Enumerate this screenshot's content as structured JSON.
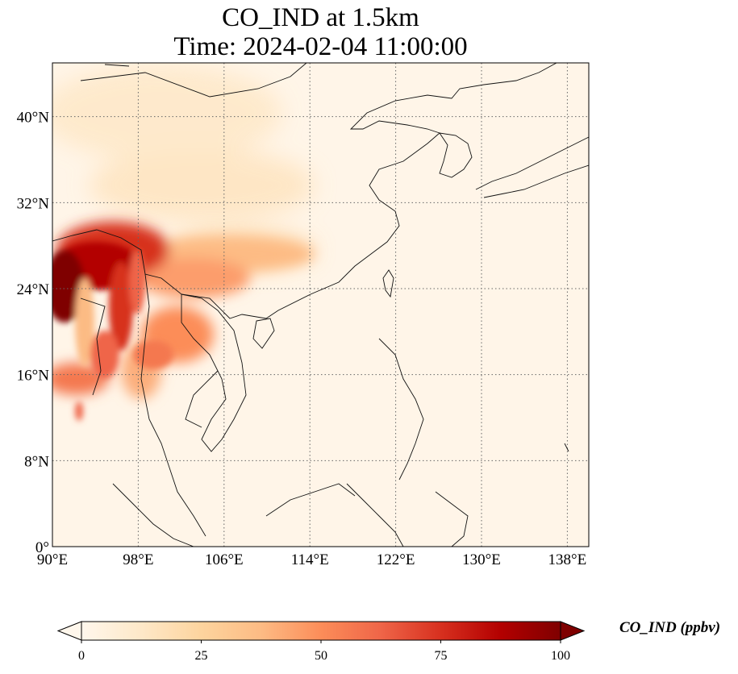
{
  "title": {
    "line1": "CO_IND at 1.5km",
    "line2": "Time: 2024-02-04 11:00:00"
  },
  "map": {
    "projection": "PlateCarree",
    "lon_range": [
      90,
      140
    ],
    "lat_range": [
      0,
      45
    ],
    "gridlines": "dotted",
    "lon_ticks": [
      {
        "value": 90,
        "label": "90°E"
      },
      {
        "value": 98,
        "label": "98°E"
      },
      {
        "value": 106,
        "label": "106°E"
      },
      {
        "value": 114,
        "label": "114°E"
      },
      {
        "value": 122,
        "label": "122°E"
      },
      {
        "value": 130,
        "label": "130°E"
      },
      {
        "value": 138,
        "label": "138°E"
      }
    ],
    "lat_ticks": [
      {
        "value": 0,
        "label": "0°"
      },
      {
        "value": 8,
        "label": "8°N"
      },
      {
        "value": 16,
        "label": "16°N"
      },
      {
        "value": 24,
        "label": "24°N"
      },
      {
        "value": 32,
        "label": "32°N"
      },
      {
        "value": 40,
        "label": "40°N"
      }
    ]
  },
  "colorbar": {
    "label": "CO_IND (ppbv)",
    "range": [
      0,
      100
    ],
    "extend": "both",
    "colormap": "OrRd",
    "colors": [
      "#fff7ec",
      "#fee8c8",
      "#fdd49e",
      "#fdbb84",
      "#fc8d59",
      "#ef6548",
      "#d7301f",
      "#b30000",
      "#7f0000"
    ],
    "ticks": [
      {
        "value": 0,
        "label": "0"
      },
      {
        "value": 25,
        "label": "25"
      },
      {
        "value": 50,
        "label": "50"
      },
      {
        "value": 75,
        "label": "75"
      },
      {
        "value": 100,
        "label": "100"
      }
    ]
  }
}
